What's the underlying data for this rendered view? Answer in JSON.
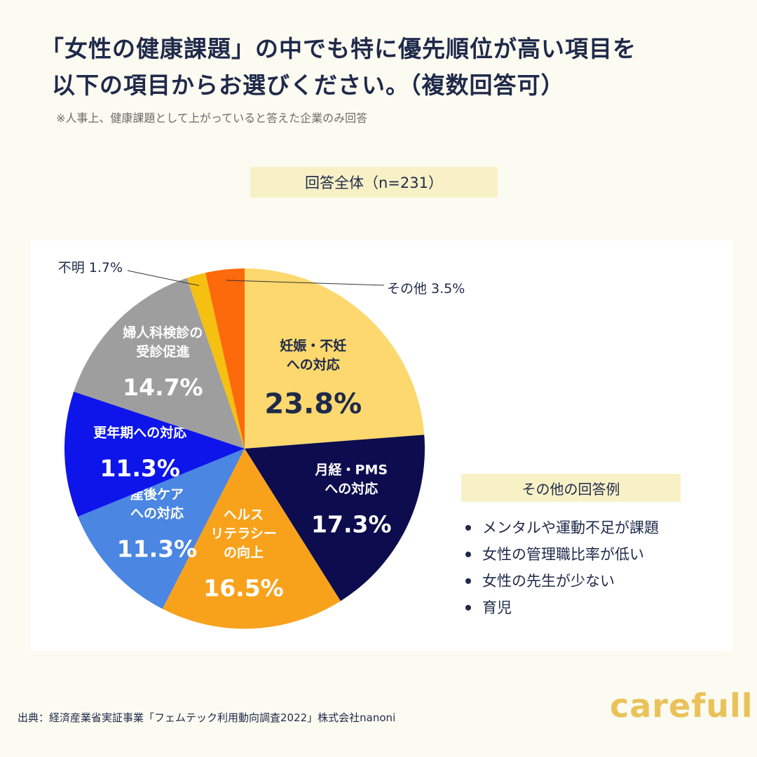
{
  "header": {
    "title_line1": "「女性の健康課題」の中でも特に優先順位が高い項目を",
    "title_line2": "以下の項目からお選びください。（複数回答可）",
    "note": "※人事上、健康課題として上がっていると答えた企業のみ回答"
  },
  "chart_data": {
    "type": "pie",
    "title": "回答全体（n=231）",
    "unit": "%",
    "slices": [
      {
        "label": "妊娠・不妊への対応",
        "lines": [
          "妊娠・不妊",
          "への対応"
        ],
        "value": 23.8,
        "value_text": "23.8%",
        "color": "#fcd86e",
        "text_color": "#1f2a4a"
      },
      {
        "label": "月経・PMSへの対応",
        "lines": [
          "月経・PMS",
          "への対応"
        ],
        "value": 17.3,
        "value_text": "17.3%",
        "color": "#0c0c4e",
        "text_color": "#ffffff"
      },
      {
        "label": "ヘルスリテラシーの向上",
        "lines": [
          "ヘルス",
          "リテラシー",
          "の向上"
        ],
        "value": 16.5,
        "value_text": "16.5%",
        "color": "#f8a21c",
        "text_color": "#ffffff"
      },
      {
        "label": "産後ケアへの対応",
        "lines": [
          "産後ケア",
          "への対応"
        ],
        "value": 11.3,
        "value_text": "11.3%",
        "color": "#4a86e2",
        "text_color": "#ffffff"
      },
      {
        "label": "更年期への対応",
        "lines": [
          "更年期への対応"
        ],
        "value": 11.3,
        "value_text": "11.3%",
        "color": "#0d15ea",
        "text_color": "#ffffff"
      },
      {
        "label": "婦人科検診の受診促進",
        "lines": [
          "婦人科検診の",
          "受診促進"
        ],
        "value": 14.7,
        "value_text": "14.7%",
        "color": "#9e9e9e",
        "text_color": "#ffffff"
      },
      {
        "label": "不明",
        "lines": [],
        "value": 1.7,
        "value_text": "不明 1.7%",
        "color": "#f5c012",
        "text_color": "#1f2a4a"
      },
      {
        "label": "その他",
        "lines": [],
        "value": 3.5,
        "value_text": "その他 3.5%",
        "color": "#fc6a0c",
        "text_color": "#1f2a4a"
      }
    ]
  },
  "others": {
    "heading": "その他の回答例",
    "items": [
      "メンタルや運動不足が課題",
      "女性の管理職比率が低い",
      "女性の先生が少ない",
      "育児"
    ]
  },
  "footer": {
    "source": "出典：経済産業省実証事業「フェムテック利用動向調査2022」株式会社nanoni",
    "brand": "carefull"
  }
}
